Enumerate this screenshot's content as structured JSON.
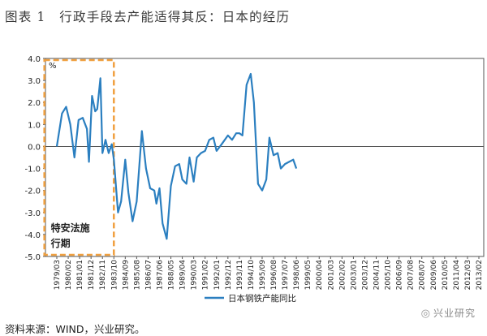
{
  "title": "图表 1　行政手段去产能适得其反：日本的经历",
  "source": "资料来源：WIND，兴业研究。",
  "watermark": "兴业研究",
  "watermark_icon": "wechat-icon",
  "colors": {
    "line": "#2b7fc0",
    "box": "#f0a040",
    "axis": "#555555",
    "box_text": "#1f1f1f"
  },
  "chart_data": {
    "type": "line",
    "unit_label": "%",
    "ylim": [
      -5.0,
      4.0
    ],
    "yticks": [
      "4.0",
      "3.0",
      "2.0",
      "1.0",
      "0.0",
      "-1.0",
      "-2.0",
      "-3.0",
      "-4.0",
      "-5.0"
    ],
    "xticks": [
      "1979/03",
      "1980/02",
      "1981/01",
      "1981/12",
      "1982/11",
      "1983/10",
      "1984/09",
      "1985/08",
      "1986/07",
      "1987/06",
      "1988/05",
      "1989/04",
      "1990/03",
      "1991/02",
      "1992/01",
      "1992/12",
      "1993/11",
      "1994/10",
      "1995/09",
      "1996/08",
      "1997/07",
      "1998/06",
      "1999/05",
      "2000/04",
      "2001/03",
      "2002/02",
      "2003/01",
      "2003/12",
      "2004/11",
      "2005/10",
      "2006/09",
      "2007/08",
      "2008/07",
      "2009/06",
      "2010/05",
      "2011/04",
      "2012/03",
      "2013/02"
    ],
    "x_start": "1979/03",
    "x_end": "1998/06",
    "annotation": {
      "label_line1": "特安法施",
      "label_line2": "行期",
      "x_from": "1978/03",
      "x_to": "1983/10"
    },
    "series": [
      {
        "name": "日本钢铁产能同比",
        "points": [
          [
            "1979/03",
            0.0
          ],
          [
            "1979/08",
            1.5
          ],
          [
            "1979/12",
            1.8
          ],
          [
            "1980/04",
            1.0
          ],
          [
            "1980/08",
            -0.5
          ],
          [
            "1980/12",
            1.2
          ],
          [
            "1981/04",
            1.3
          ],
          [
            "1981/08",
            0.8
          ],
          [
            "1981/10",
            -0.7
          ],
          [
            "1982/01",
            2.3
          ],
          [
            "1982/04",
            1.6
          ],
          [
            "1982/06",
            1.7
          ],
          [
            "1982/09",
            3.1
          ],
          [
            "1982/11",
            -0.3
          ],
          [
            "1983/02",
            0.3
          ],
          [
            "1983/05",
            -0.3
          ],
          [
            "1983/08",
            0.1
          ],
          [
            "1983/10",
            -0.6
          ],
          [
            "1984/02",
            -3.0
          ],
          [
            "1984/05",
            -2.5
          ],
          [
            "1984/09",
            -0.6
          ],
          [
            "1984/12",
            -2.1
          ],
          [
            "1985/04",
            -3.4
          ],
          [
            "1985/08",
            -2.5
          ],
          [
            "1986/01",
            0.7
          ],
          [
            "1986/05",
            -1.0
          ],
          [
            "1986/09",
            -1.9
          ],
          [
            "1987/01",
            -2.0
          ],
          [
            "1987/03",
            -2.6
          ],
          [
            "1987/06",
            -1.9
          ],
          [
            "1987/09",
            -3.5
          ],
          [
            "1988/01",
            -4.2
          ],
          [
            "1988/05",
            -1.8
          ],
          [
            "1988/09",
            -0.9
          ],
          [
            "1989/01",
            -0.8
          ],
          [
            "1989/04",
            -1.5
          ],
          [
            "1989/08",
            -1.7
          ],
          [
            "1989/11",
            -0.5
          ],
          [
            "1990/03",
            -1.6
          ],
          [
            "1990/06",
            -0.5
          ],
          [
            "1990/10",
            -0.3
          ],
          [
            "1991/02",
            -0.2
          ],
          [
            "1991/06",
            0.3
          ],
          [
            "1991/10",
            0.4
          ],
          [
            "1992/01",
            -0.2
          ],
          [
            "1992/06",
            0.1
          ],
          [
            "1992/12",
            0.5
          ],
          [
            "1993/04",
            0.3
          ],
          [
            "1993/08",
            0.6
          ],
          [
            "1993/11",
            0.6
          ],
          [
            "1994/02",
            0.5
          ],
          [
            "1994/06",
            2.8
          ],
          [
            "1994/10",
            3.3
          ],
          [
            "1995/01",
            2.0
          ],
          [
            "1995/05",
            -1.7
          ],
          [
            "1995/09",
            -2.0
          ],
          [
            "1996/01",
            -1.5
          ],
          [
            "1996/04",
            0.4
          ],
          [
            "1996/08",
            -0.4
          ],
          [
            "1996/12",
            -0.3
          ],
          [
            "1997/03",
            -1.0
          ],
          [
            "1997/07",
            -0.8
          ],
          [
            "1997/11",
            -0.7
          ],
          [
            "1998/03",
            -0.6
          ],
          [
            "1998/06",
            -1.0
          ]
        ]
      }
    ]
  }
}
